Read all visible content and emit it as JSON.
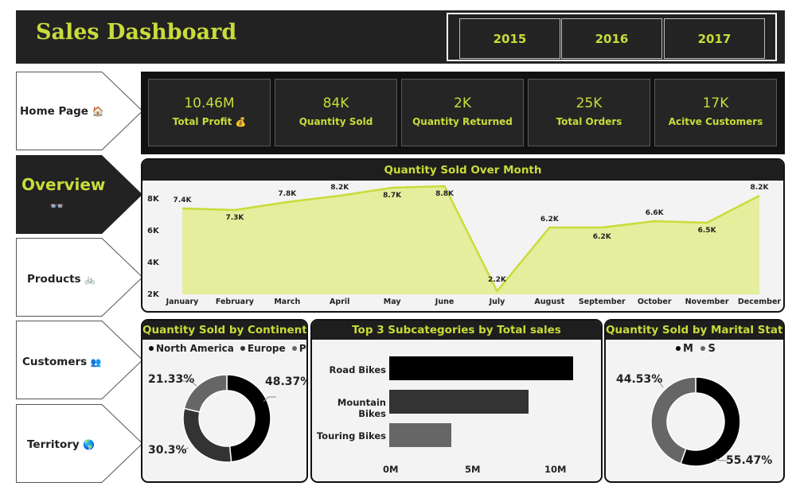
{
  "header": {
    "title": "Sales Dashboard",
    "years": [
      "2015",
      "2016",
      "2017"
    ]
  },
  "nav": {
    "items": [
      {
        "label": "Home Page",
        "icon": "🏠",
        "active": false
      },
      {
        "label": "Overview",
        "icon": "👓",
        "active": true
      },
      {
        "label": "Products",
        "icon": "🚲",
        "active": false
      },
      {
        "label": "Customers",
        "icon": "👥",
        "active": false
      },
      {
        "label": "Territory",
        "icon": "🌎",
        "active": false
      }
    ]
  },
  "kpis": [
    {
      "value": "10.46M",
      "label": "Total Profit",
      "icon": "💰"
    },
    {
      "value": "84K",
      "label": "Quantity Sold"
    },
    {
      "value": "2K",
      "label": "Quantity Returned"
    },
    {
      "value": "25K",
      "label": "Total Orders"
    },
    {
      "value": "17K",
      "label": "Acitve Customers"
    }
  ],
  "colors": {
    "accent": "#c8dc3a",
    "area_fill": "#e4ee9c",
    "dark": "#222222"
  },
  "chart_data": [
    {
      "type": "area",
      "title": "Quantity Sold Over Month",
      "categories": [
        "January",
        "February",
        "March",
        "April",
        "May",
        "June",
        "July",
        "August",
        "September",
        "October",
        "November",
        "December"
      ],
      "values": [
        7.4,
        7.3,
        7.8,
        8.2,
        8.7,
        8.8,
        2.2,
        6.2,
        6.2,
        6.6,
        6.5,
        8.2
      ],
      "data_labels": [
        "7.4K",
        "7.3K",
        "7.8K",
        "8.2K",
        "8.7K",
        "8.8K",
        "2.2K",
        "6.2K",
        "6.2K",
        "6.6K",
        "6.5K",
        "8.2K"
      ],
      "yticks": [
        "2K",
        "4K",
        "6K",
        "8K"
      ],
      "ylim": [
        2,
        8.8
      ],
      "grid": false
    },
    {
      "type": "pie",
      "title": "Quantity Sold by Continent",
      "legend": [
        "North America",
        "Europe",
        "Pacific"
      ],
      "values": [
        48.37,
        30.3,
        21.33
      ],
      "labels": [
        "48.37%",
        "30.3%",
        "21.33%"
      ],
      "colors": [
        "#000000",
        "#333333",
        "#666666"
      ],
      "legend_position": "top"
    },
    {
      "type": "bar",
      "title": "Top 3 Subcategories by Total sales",
      "categories": [
        "Road Bikes",
        "Mountain Bikes",
        "Touring Bikes"
      ],
      "values": [
        11.6,
        8.8,
        3.9
      ],
      "xticks": [
        "0M",
        "5M",
        "10M"
      ],
      "xlim": [
        0,
        12.7
      ],
      "colors": [
        "#000000",
        "#333333",
        "#666666"
      ]
    },
    {
      "type": "pie",
      "title": "Quantity Sold by Marital Status",
      "legend": [
        "M",
        "S"
      ],
      "values": [
        55.47,
        44.53
      ],
      "labels": [
        "55.47%",
        "44.53%"
      ],
      "colors": [
        "#000000",
        "#666666"
      ],
      "legend_position": "top"
    }
  ]
}
